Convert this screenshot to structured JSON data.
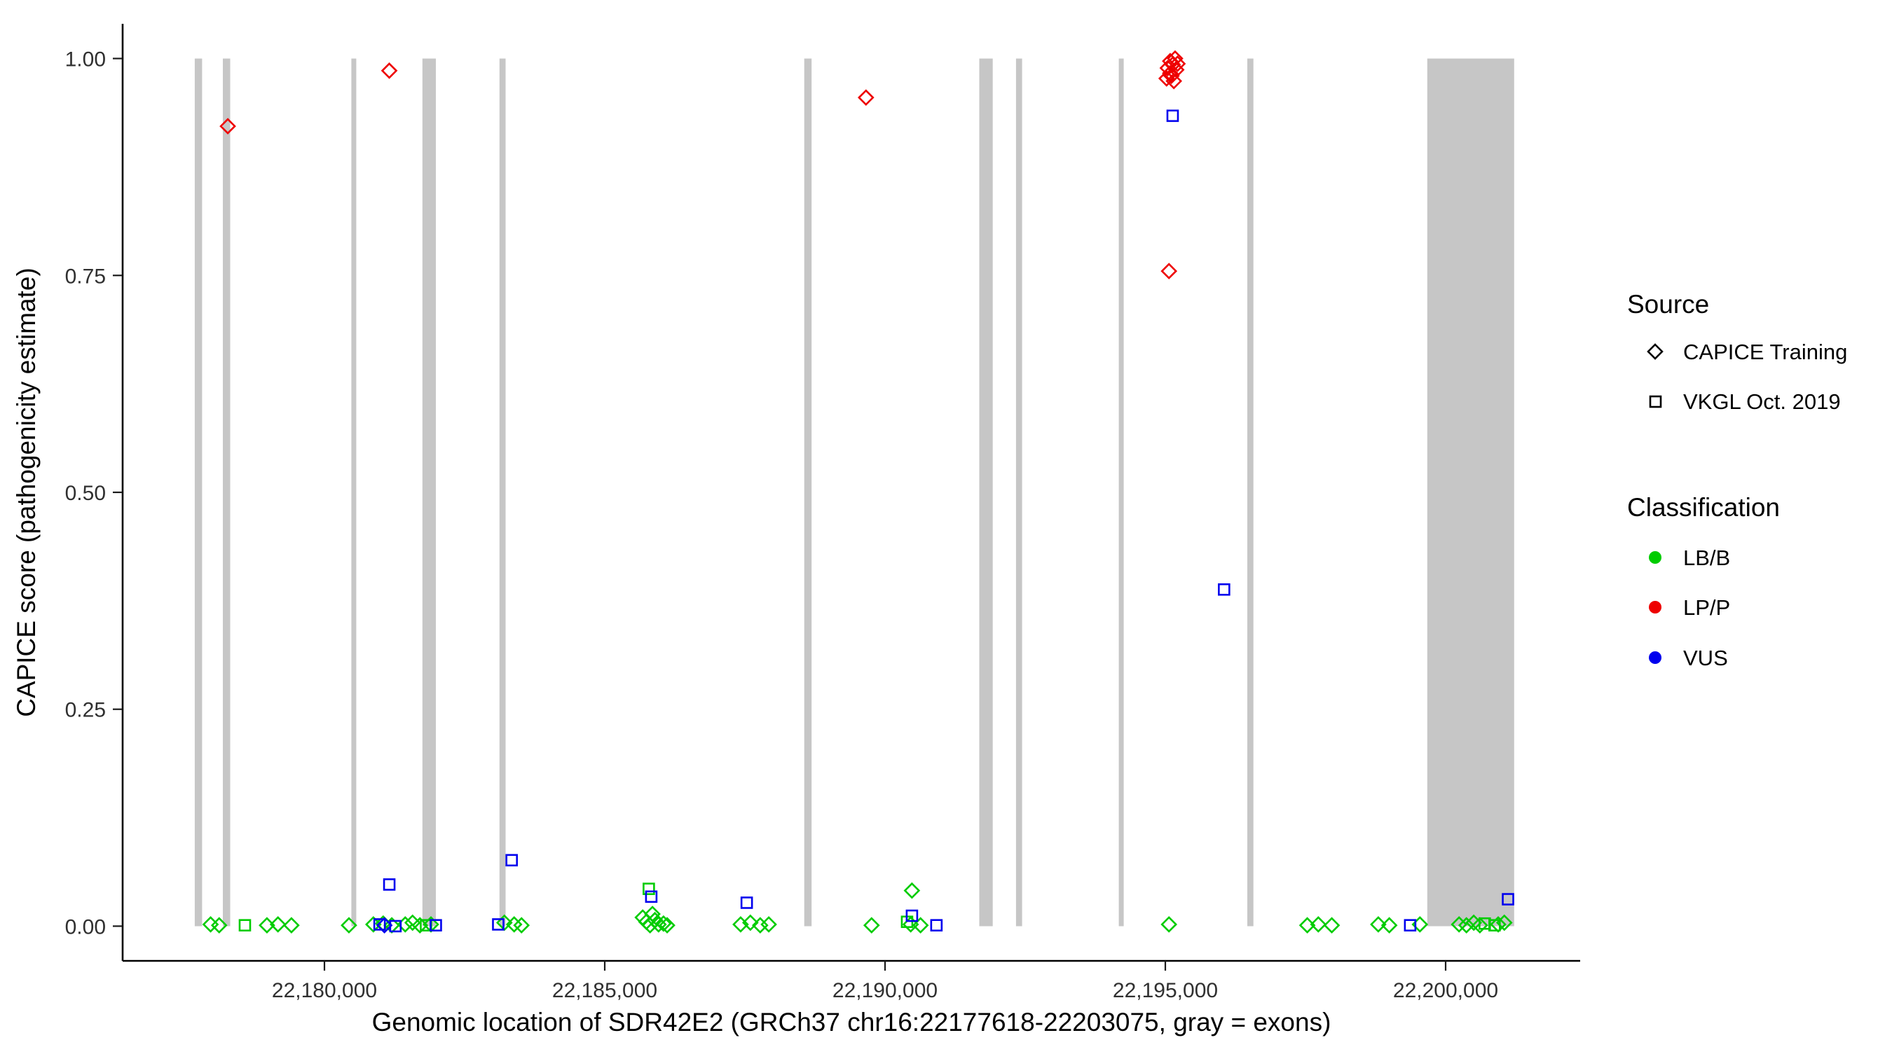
{
  "chart_data": {
    "type": "scatter",
    "title": "",
    "xlabel": "Genomic location of SDR42E2 (GRCh37 chr16:22177618-22203075, gray = exons)",
    "ylabel": "CAPICE score (pathogenicity estimate)",
    "xlim": [
      22176400,
      22202400
    ],
    "ylim": [
      -0.04,
      1.04
    ],
    "grid": false,
    "legend_position": "right",
    "x_ticks": [
      {
        "value": 22180000,
        "label": "22,180,000"
      },
      {
        "value": 22185000,
        "label": "22,185,000"
      },
      {
        "value": 22190000,
        "label": "22,190,000"
      },
      {
        "value": 22195000,
        "label": "22,195,000"
      },
      {
        "value": 22200000,
        "label": "22,200,000"
      }
    ],
    "y_ticks": [
      {
        "value": 0.0,
        "label": "0.00"
      },
      {
        "value": 0.25,
        "label": "0.25"
      },
      {
        "value": 0.5,
        "label": "0.50"
      },
      {
        "value": 0.75,
        "label": "0.75"
      },
      {
        "value": 1.0,
        "label": "1.00"
      }
    ],
    "exon_color": "#c6c6c6",
    "exon_ymin": 0.0,
    "exon_ymax": 1.0,
    "exons": [
      [
        22177686,
        22177817
      ],
      [
        22178188,
        22178319
      ],
      [
        22180480,
        22180568
      ],
      [
        22181747,
        22181987
      ],
      [
        22183122,
        22183231
      ],
      [
        22188559,
        22188690
      ],
      [
        22191681,
        22191921
      ],
      [
        22192336,
        22192445
      ],
      [
        22194170,
        22194257
      ],
      [
        22196462,
        22196571
      ],
      [
        22199672,
        22201222
      ]
    ],
    "class_colors": {
      "LB/B": "#00cc00",
      "LP/P": "#ee0000",
      "VUS": "#0000ee"
    },
    "source_shapes": {
      "CAPICE Training": "diamond",
      "VKGL Oct. 2019": "square"
    },
    "series": [
      {
        "source": "CAPICE Training",
        "classification": "LB/B",
        "shape": "diamond",
        "points": [
          [
            22177969,
            0.002
          ],
          [
            22178122,
            0.001
          ],
          [
            22178974,
            0.001
          ],
          [
            22179171,
            0.002
          ],
          [
            22179411,
            0.001
          ],
          [
            22180437,
            0.001
          ],
          [
            22180873,
            0.002
          ],
          [
            22181048,
            0.003
          ],
          [
            22181201,
            0.001
          ],
          [
            22181441,
            0.002
          ],
          [
            22181572,
            0.004
          ],
          [
            22181703,
            0.001
          ],
          [
            22181900,
            0.002
          ],
          [
            22183210,
            0.004
          ],
          [
            22183384,
            0.002
          ],
          [
            22183515,
            0.001
          ],
          [
            22185677,
            0.01
          ],
          [
            22185742,
            0.005
          ],
          [
            22185808,
            0.001
          ],
          [
            22185851,
            0.014
          ],
          [
            22185895,
            0.007
          ],
          [
            22185960,
            0.002
          ],
          [
            22186048,
            0.003
          ],
          [
            22186113,
            0.001
          ],
          [
            22187424,
            0.002
          ],
          [
            22187598,
            0.004
          ],
          [
            22187773,
            0.001
          ],
          [
            22187926,
            0.002
          ],
          [
            22189760,
            0.001
          ],
          [
            22190458,
            0.002
          ],
          [
            22190480,
            0.041
          ],
          [
            22190633,
            0.001
          ],
          [
            22195065,
            0.002
          ],
          [
            22197532,
            0.001
          ],
          [
            22197729,
            0.002
          ],
          [
            22197969,
            0.001
          ],
          [
            22198799,
            0.002
          ],
          [
            22198995,
            0.001
          ],
          [
            22199541,
            0.002
          ],
          [
            22200240,
            0.002
          ],
          [
            22200371,
            0.001
          ],
          [
            22200502,
            0.004
          ],
          [
            22200611,
            0.001
          ],
          [
            22200938,
            0.002
          ],
          [
            22201047,
            0.004
          ]
        ]
      },
      {
        "source": "VKGL Oct. 2019",
        "classification": "LB/B",
        "shape": "square",
        "points": [
          [
            22178581,
            0.001
          ],
          [
            22185786,
            0.043
          ],
          [
            22181812,
            0.001
          ],
          [
            22190393,
            0.005
          ],
          [
            22200698,
            0.003
          ],
          [
            22200873,
            0.001
          ]
        ]
      },
      {
        "source": "CAPICE Training",
        "classification": "VUS",
        "shape": "diamond",
        "points": [
          [
            22181070,
            0.001
          ]
        ]
      },
      {
        "source": "VKGL Oct. 2019",
        "classification": "VUS",
        "shape": "square",
        "points": [
          [
            22195131,
            0.934
          ],
          [
            22196048,
            0.388
          ],
          [
            22181157,
            0.048
          ],
          [
            22183340,
            0.076
          ],
          [
            22185830,
            0.034
          ],
          [
            22187533,
            0.027
          ],
          [
            22190480,
            0.012
          ],
          [
            22190917,
            0.001
          ],
          [
            22201113,
            0.031
          ],
          [
            22180983,
            0.002
          ],
          [
            22181987,
            0.001
          ],
          [
            22183100,
            0.002
          ],
          [
            22199367,
            0.001
          ],
          [
            22181267,
            0.0
          ]
        ]
      },
      {
        "source": "CAPICE Training",
        "classification": "LP/P",
        "shape": "diamond",
        "points": [
          [
            22178276,
            0.922
          ],
          [
            22181157,
            0.986
          ],
          [
            22189660,
            0.955
          ],
          [
            22195087,
            0.997
          ],
          [
            22195174,
            1.0
          ],
          [
            22195131,
            0.993
          ],
          [
            22195043,
            0.989
          ],
          [
            22195196,
            0.987
          ],
          [
            22195109,
            0.98
          ],
          [
            22195022,
            0.977
          ],
          [
            22195152,
            0.974
          ],
          [
            22195218,
            0.994
          ],
          [
            22195087,
            0.983
          ],
          [
            22195065,
            0.755
          ]
        ]
      }
    ]
  },
  "legend": {
    "source_title": "Source",
    "source_items": [
      {
        "label": "CAPICE Training",
        "shape": "diamond"
      },
      {
        "label": "VKGL Oct. 2019",
        "shape": "square"
      }
    ],
    "class_title": "Classification",
    "class_items": [
      {
        "label": "LB/B",
        "color": "#00cc00"
      },
      {
        "label": "LP/P",
        "color": "#ee0000"
      },
      {
        "label": "VUS",
        "color": "#0000ee"
      }
    ]
  }
}
